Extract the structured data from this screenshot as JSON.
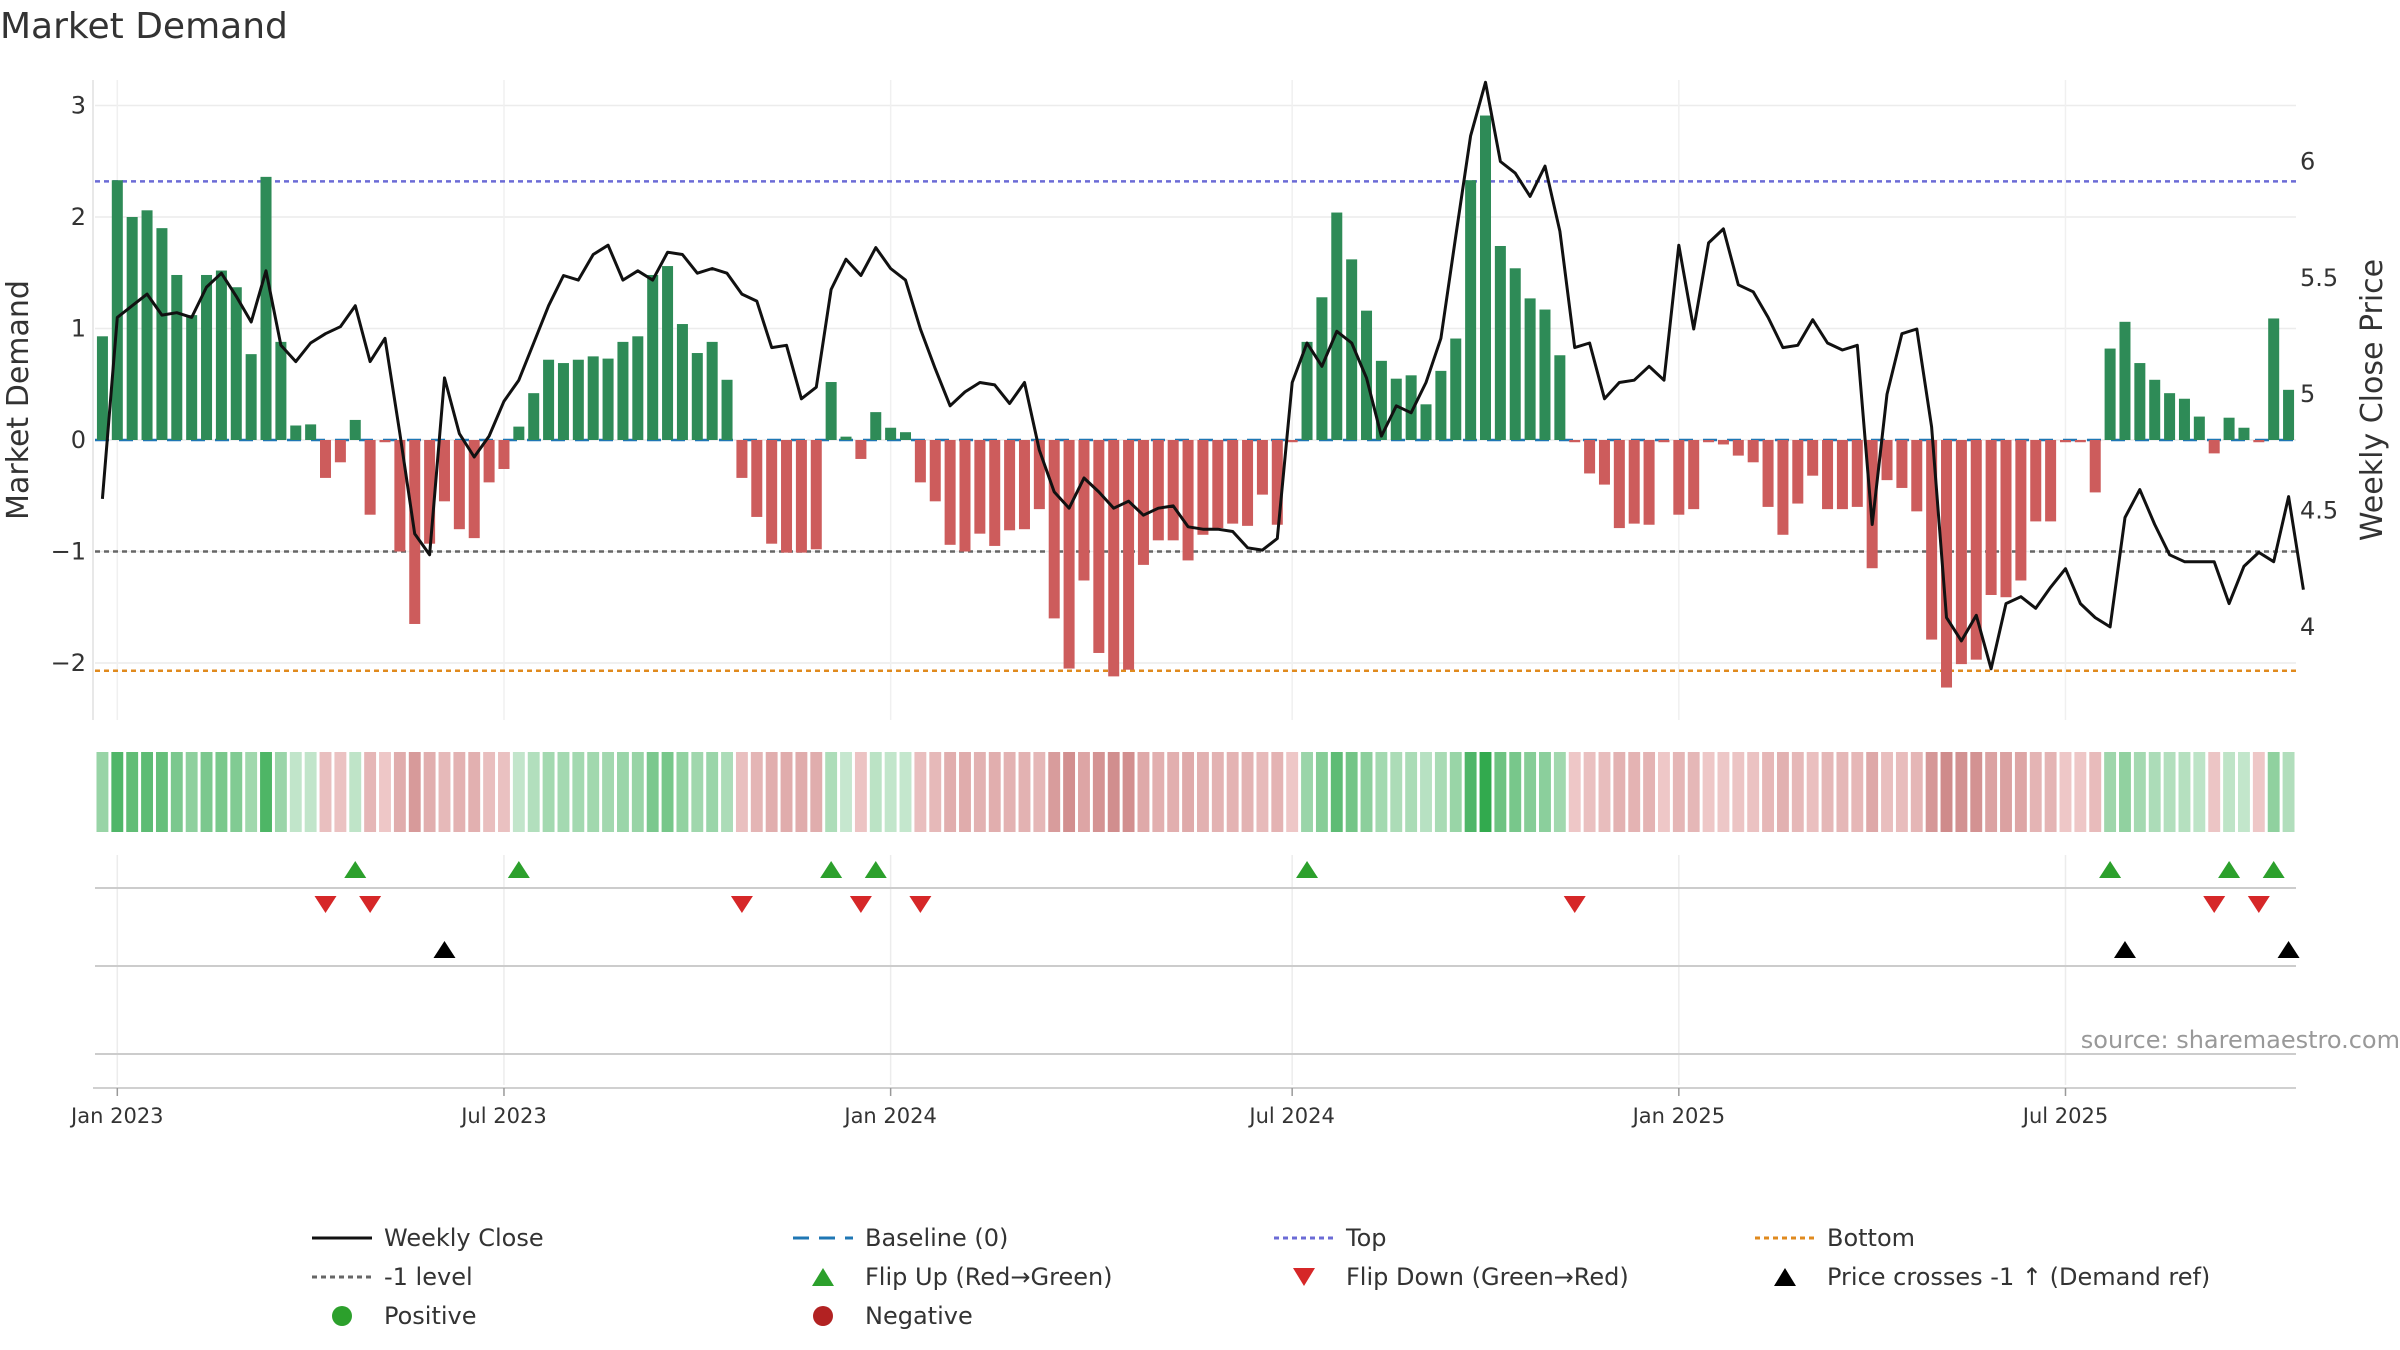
{
  "chart_data": {
    "type": "bar",
    "title": "Market Demand",
    "ylabel_left": "Market Demand",
    "ylabel_right": "Weekly Close Price",
    "source": "source: sharemaestro.com",
    "left_axis": {
      "ylim": [
        -2.5,
        3.2
      ],
      "ticks": [
        3,
        2,
        1,
        0,
        -1,
        -2
      ],
      "tick_labels": [
        "3",
        "2",
        "1",
        "0",
        "−1",
        "−2"
      ]
    },
    "right_axis": {
      "ylim": [
        3.6,
        6.35
      ],
      "ticks": [
        6,
        5.5,
        5,
        4.5,
        4
      ],
      "tick_labels": [
        "6",
        "5.5",
        "5",
        "4.5",
        "4"
      ]
    },
    "x_ticks": [
      "Jan 2023",
      "Jul 2023",
      "Jan 2024",
      "Jul 2024",
      "Jan 2025",
      "Jul 2025"
    ],
    "grid": true,
    "reference_lines": {
      "top": 2.32,
      "minus_one": -1,
      "bottom": -2.07,
      "baseline": 0
    },
    "colors": {
      "positive": "#2e8b57",
      "negative": "#cd5c5c",
      "price": "#111111",
      "top": "#6b6bd6",
      "bottom": "#e08a1e",
      "minus_one": "#666666",
      "baseline": "#1f77b4",
      "flip_up": "#2ca02c",
      "flip_down": "#d62728",
      "price_cross": "#000000",
      "dot_positive": "#2ca02c",
      "dot_negative": "#b22222"
    },
    "demand": [
      0.93,
      2.33,
      2.0,
      2.06,
      1.9,
      1.48,
      1.12,
      1.48,
      1.52,
      1.37,
      0.77,
      2.36,
      0.88,
      0.13,
      0.14,
      -0.34,
      -0.2,
      0.18,
      -0.67,
      -0.02,
      -1.0,
      -1.65,
      -0.93,
      -0.55,
      -0.8,
      -0.88,
      -0.38,
      -0.26,
      0.12,
      0.42,
      0.72,
      0.69,
      0.72,
      0.75,
      0.73,
      0.88,
      0.93,
      1.48,
      1.56,
      1.04,
      0.78,
      0.88,
      0.54,
      -0.34,
      -0.69,
      -0.93,
      -1.01,
      -1.01,
      -0.98,
      0.52,
      0.03,
      -0.17,
      0.25,
      0.11,
      0.07,
      -0.38,
      -0.55,
      -0.94,
      -1.0,
      -0.84,
      -0.95,
      -0.81,
      -0.8,
      -0.62,
      -1.6,
      -2.05,
      -1.26,
      -1.91,
      -2.12,
      -2.06,
      -1.12,
      -0.9,
      -0.9,
      -1.08,
      -0.85,
      -0.79,
      -0.75,
      -0.77,
      -0.49,
      -0.76,
      -0.02,
      0.88,
      1.28,
      2.04,
      1.62,
      1.16,
      0.71,
      0.55,
      0.58,
      0.32,
      0.62,
      0.91,
      2.33,
      2.91,
      1.74,
      1.54,
      1.27,
      1.17,
      0.76,
      -0.02,
      -0.3,
      -0.4,
      -0.79,
      -0.75,
      -0.76,
      -0.02,
      -0.67,
      -0.62,
      -0.02,
      -0.04,
      -0.14,
      -0.2,
      -0.6,
      -0.85,
      -0.57,
      -0.32,
      -0.62,
      -0.62,
      -0.6,
      -1.15,
      -0.36,
      -0.43,
      -0.64,
      -1.79,
      -2.22,
      -2.01,
      -1.97,
      -1.39,
      -1.41,
      -1.26,
      -0.73,
      -0.73,
      -0.02,
      -0.02,
      -0.47,
      0.82,
      1.06,
      0.69,
      0.54,
      0.42,
      0.37,
      0.21,
      -0.12,
      0.2,
      0.11,
      -0.02,
      1.09,
      0.45
    ],
    "price": [
      4.55,
      5.33,
      5.38,
      5.43,
      5.34,
      5.35,
      5.33,
      5.46,
      5.52,
      5.42,
      5.31,
      5.53,
      5.21,
      5.14,
      5.22,
      5.26,
      5.29,
      5.38,
      5.14,
      5.24,
      4.83,
      4.4,
      4.31,
      5.07,
      4.83,
      4.73,
      4.82,
      4.97,
      5.06,
      5.22,
      5.38,
      5.51,
      5.49,
      5.6,
      5.64,
      5.49,
      5.53,
      5.49,
      5.61,
      5.6,
      5.52,
      5.54,
      5.52,
      5.43,
      5.4,
      5.2,
      5.21,
      4.98,
      5.03,
      5.45,
      5.58,
      5.51,
      5.63,
      5.54,
      5.49,
      5.28,
      5.11,
      4.95,
      5.01,
      5.05,
      5.04,
      4.96,
      5.05,
      4.76,
      4.58,
      4.51,
      4.64,
      4.58,
      4.51,
      4.54,
      4.48,
      4.51,
      4.52,
      4.43,
      4.42,
      4.42,
      4.41,
      4.34,
      4.33,
      4.38,
      5.05,
      5.22,
      5.12,
      5.27,
      5.22,
      5.07,
      4.82,
      4.95,
      4.92,
      5.05,
      5.24,
      5.68,
      6.11,
      6.34,
      6.0,
      5.95,
      5.85,
      5.98,
      5.7,
      5.2,
      5.22,
      4.98,
      5.05,
      5.06,
      5.12,
      5.06,
      5.64,
      5.28,
      5.65,
      5.71,
      5.47,
      5.44,
      5.33,
      5.2,
      5.21,
      5.32,
      5.22,
      5.19,
      5.21,
      4.44,
      5.0,
      5.26,
      5.28,
      4.86,
      4.04,
      3.94,
      4.05,
      3.82,
      4.1,
      4.13,
      4.08,
      4.17,
      4.25,
      4.1,
      4.04,
      4.0,
      4.47,
      4.59,
      4.44,
      4.31,
      4.28,
      4.28,
      4.28,
      4.1,
      4.26,
      4.32,
      4.28,
      4.56,
      4.16
    ],
    "legend": [
      {
        "label": "Weekly Close",
        "kind": "solid-line",
        "color": "#111111"
      },
      {
        "label": "Baseline (0)",
        "kind": "dash-line",
        "color": "#1f77b4"
      },
      {
        "label": "Top",
        "kind": "dot-line",
        "color": "#6b6bd6"
      },
      {
        "label": "Bottom",
        "kind": "dot-line",
        "color": "#e08a1e"
      },
      {
        "label": "-1 level",
        "kind": "dot-line",
        "color": "#666666"
      },
      {
        "label": "Flip Up (Red→Green)",
        "kind": "tri-up",
        "color": "#2ca02c"
      },
      {
        "label": "Flip Down (Green→Red)",
        "kind": "tri-down",
        "color": "#d62728"
      },
      {
        "label": "Price crosses -1 ↑ (Demand ref)",
        "kind": "tri-up",
        "color": "#000000"
      },
      {
        "label": "Positive",
        "kind": "dot",
        "color": "#2ca02c"
      },
      {
        "label": "Negative",
        "kind": "dot",
        "color": "#b22222"
      }
    ]
  }
}
